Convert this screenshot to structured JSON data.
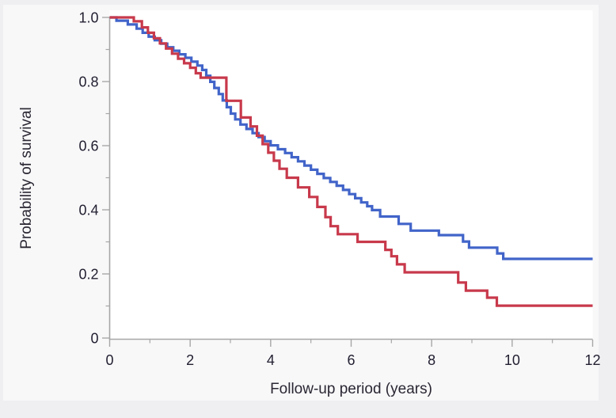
{
  "page": {
    "background": "#efeff1",
    "panel_background": "#f8f8f9",
    "plot_background": "#ffffff"
  },
  "chart_data": {
    "type": "line",
    "variant": "kaplan-meier-survival-step",
    "title": "",
    "xlabel": "Follow-up period (years)",
    "ylabel": "Probability of survival",
    "xlim": [
      0,
      12
    ],
    "ylim": [
      0,
      1.0
    ],
    "grid": false,
    "legend_position": "none",
    "axis_color": "#a7a7a7",
    "tick_label_color": "#232031",
    "axis_title_color": "#2b2733",
    "x_major_ticks": [
      0,
      2,
      4,
      6,
      8,
      10,
      12
    ],
    "x_major_tick_labels": [
      "0",
      "2",
      "4",
      "6",
      "8",
      "10",
      "12"
    ],
    "x_minor_ticks": [
      1,
      3,
      5,
      7,
      9,
      11
    ],
    "y_major_ticks": [
      0,
      0.2,
      0.4,
      0.6,
      0.8,
      1.0
    ],
    "y_major_tick_labels": [
      "0",
      "0.2",
      "0.4",
      "0.6",
      "0.8",
      "1.0"
    ],
    "y_minor_ticks": [
      0.1,
      0.3,
      0.5,
      0.7,
      0.9
    ],
    "series": [
      {
        "name": "group-blue",
        "color": "#4164c9",
        "stroke_width": 3.2,
        "points": [
          [
            0,
            1.0
          ],
          [
            0.17,
            0.99
          ],
          [
            0.45,
            0.978
          ],
          [
            0.67,
            0.965
          ],
          [
            0.82,
            0.952
          ],
          [
            0.97,
            0.94
          ],
          [
            1.12,
            0.929
          ],
          [
            1.28,
            0.918
          ],
          [
            1.43,
            0.907
          ],
          [
            1.58,
            0.896
          ],
          [
            1.73,
            0.885
          ],
          [
            1.88,
            0.874
          ],
          [
            2.03,
            0.862
          ],
          [
            2.18,
            0.85
          ],
          [
            2.3,
            0.836
          ],
          [
            2.4,
            0.818
          ],
          [
            2.5,
            0.799
          ],
          [
            2.6,
            0.78
          ],
          [
            2.71,
            0.761
          ],
          [
            2.81,
            0.741
          ],
          [
            2.91,
            0.72
          ],
          [
            3.01,
            0.7
          ],
          [
            3.12,
            0.682
          ],
          [
            3.25,
            0.666
          ],
          [
            3.4,
            0.652
          ],
          [
            3.55,
            0.639
          ],
          [
            3.7,
            0.627
          ],
          [
            3.85,
            0.614
          ],
          [
            4.0,
            0.601
          ],
          [
            4.18,
            0.589
          ],
          [
            4.36,
            0.577
          ],
          [
            4.52,
            0.564
          ],
          [
            4.68,
            0.551
          ],
          [
            4.84,
            0.538
          ],
          [
            5.0,
            0.525
          ],
          [
            5.16,
            0.512
          ],
          [
            5.32,
            0.499
          ],
          [
            5.48,
            0.487
          ],
          [
            5.64,
            0.475
          ],
          [
            5.8,
            0.462
          ],
          [
            5.95,
            0.449
          ],
          [
            6.1,
            0.436
          ],
          [
            6.25,
            0.423
          ],
          [
            6.4,
            0.411
          ],
          [
            6.52,
            0.399
          ],
          [
            6.72,
            0.379
          ],
          [
            7.18,
            0.356
          ],
          [
            7.48,
            0.335
          ],
          [
            8.18,
            0.321
          ],
          [
            8.78,
            0.301
          ],
          [
            8.93,
            0.282
          ],
          [
            9.63,
            0.264
          ],
          [
            9.78,
            0.247
          ],
          [
            12,
            0.247
          ]
        ]
      },
      {
        "name": "group-red",
        "color": "#c8394b",
        "stroke_width": 3.2,
        "points": [
          [
            0,
            1.0
          ],
          [
            0.6,
            0.988
          ],
          [
            0.8,
            0.969
          ],
          [
            0.95,
            0.952
          ],
          [
            1.1,
            0.935
          ],
          [
            1.25,
            0.919
          ],
          [
            1.4,
            0.903
          ],
          [
            1.55,
            0.887
          ],
          [
            1.7,
            0.871
          ],
          [
            1.85,
            0.857
          ],
          [
            2.0,
            0.843
          ],
          [
            2.14,
            0.826
          ],
          [
            2.26,
            0.812
          ],
          [
            2.9,
            0.74
          ],
          [
            3.26,
            0.688
          ],
          [
            3.5,
            0.66
          ],
          [
            3.66,
            0.631
          ],
          [
            3.8,
            0.605
          ],
          [
            3.94,
            0.578
          ],
          [
            4.08,
            0.553
          ],
          [
            4.22,
            0.528
          ],
          [
            4.4,
            0.5
          ],
          [
            4.68,
            0.47
          ],
          [
            4.96,
            0.44
          ],
          [
            5.16,
            0.409
          ],
          [
            5.36,
            0.377
          ],
          [
            5.49,
            0.349
          ],
          [
            5.67,
            0.324
          ],
          [
            6.16,
            0.3
          ],
          [
            6.85,
            0.275
          ],
          [
            7.0,
            0.255
          ],
          [
            7.14,
            0.23
          ],
          [
            7.33,
            0.205
          ],
          [
            8.66,
            0.173
          ],
          [
            8.85,
            0.148
          ],
          [
            9.38,
            0.126
          ],
          [
            9.62,
            0.101
          ],
          [
            12,
            0.101
          ]
        ]
      }
    ]
  }
}
